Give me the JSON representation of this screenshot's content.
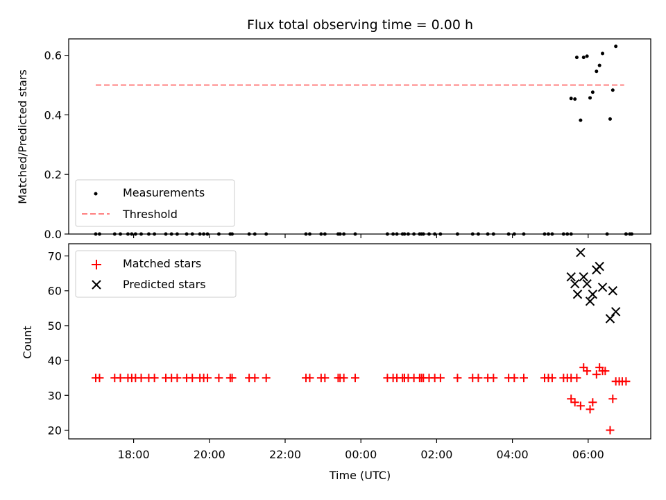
{
  "title": "Flux total observing time = 0.00 h",
  "x_axis": {
    "label": "Time (UTC)",
    "ticks": [
      {
        "hours": 1.0,
        "label": "18:00"
      },
      {
        "hours": 3.0,
        "label": "20:00"
      },
      {
        "hours": 5.0,
        "label": "22:00"
      },
      {
        "hours": 7.0,
        "label": "00:00"
      },
      {
        "hours": 9.0,
        "label": "02:00"
      },
      {
        "hours": 11.0,
        "label": "04:00"
      },
      {
        "hours": 13.0,
        "label": "06:00"
      }
    ]
  },
  "colors": {
    "measurements": "#000000",
    "threshold": "#ff7f7f",
    "matched": "#ff0000",
    "predicted": "#000000"
  },
  "chart_data": [
    {
      "type": "scatter",
      "ylabel": "Matched/Predicted stars",
      "xlabel": "",
      "ylim": [
        0.0,
        0.655
      ],
      "yticks": [
        "0.0",
        "0.2",
        "0.4",
        "0.6"
      ],
      "yticks_values": [
        0.0,
        0.2,
        0.4,
        0.6
      ],
      "legend_position": "lower-left",
      "series": [
        {
          "name": "Measurements",
          "kind": "scatter",
          "points": [
            [
              0.0,
              0
            ],
            [
              0.1,
              0
            ],
            [
              0.5,
              0
            ],
            [
              0.65,
              0
            ],
            [
              0.85,
              0
            ],
            [
              0.95,
              0
            ],
            [
              1.05,
              0
            ],
            [
              1.2,
              0
            ],
            [
              1.4,
              0
            ],
            [
              1.55,
              0
            ],
            [
              1.85,
              0
            ],
            [
              2.0,
              0
            ],
            [
              2.15,
              0
            ],
            [
              2.4,
              0
            ],
            [
              2.55,
              0
            ],
            [
              2.75,
              0
            ],
            [
              2.85,
              0
            ],
            [
              2.95,
              0
            ],
            [
              3.25,
              0
            ],
            [
              3.55,
              0
            ],
            [
              3.6,
              0
            ],
            [
              4.05,
              0
            ],
            [
              4.2,
              0
            ],
            [
              4.5,
              0
            ],
            [
              5.55,
              0
            ],
            [
              5.65,
              0
            ],
            [
              5.95,
              0
            ],
            [
              6.05,
              0
            ],
            [
              6.4,
              0
            ],
            [
              6.45,
              0
            ],
            [
              6.55,
              0
            ],
            [
              6.85,
              0
            ],
            [
              7.7,
              0
            ],
            [
              7.85,
              0
            ],
            [
              7.95,
              0
            ],
            [
              8.1,
              0
            ],
            [
              8.15,
              0
            ],
            [
              8.25,
              0
            ],
            [
              8.4,
              0
            ],
            [
              8.55,
              0
            ],
            [
              8.6,
              0
            ],
            [
              8.65,
              0
            ],
            [
              8.8,
              0
            ],
            [
              8.95,
              0
            ],
            [
              9.1,
              0
            ],
            [
              9.55,
              0
            ],
            [
              9.95,
              0
            ],
            [
              10.1,
              0
            ],
            [
              10.35,
              0
            ],
            [
              10.5,
              0
            ],
            [
              10.9,
              0
            ],
            [
              11.05,
              0
            ],
            [
              11.3,
              0
            ],
            [
              11.85,
              0
            ],
            [
              11.95,
              0
            ],
            [
              12.05,
              0
            ],
            [
              12.35,
              0
            ],
            [
              12.45,
              0
            ],
            [
              12.55,
              0
            ],
            [
              13.5,
              0
            ],
            [
              14.0,
              0
            ],
            [
              14.0,
              0
            ],
            [
              14.1,
              0
            ],
            [
              14.15,
              0
            ],
            [
              12.55,
              0.455
            ],
            [
              12.65,
              0.453
            ],
            [
              12.7,
              0.593
            ],
            [
              12.8,
              0.382
            ],
            [
              12.88,
              0.593
            ],
            [
              12.97,
              0.597
            ],
            [
              13.05,
              0.457
            ],
            [
              13.12,
              0.476
            ],
            [
              13.22,
              0.546
            ],
            [
              13.3,
              0.566
            ],
            [
              13.38,
              0.606
            ],
            [
              13.58,
              0.386
            ],
            [
              13.65,
              0.483
            ],
            [
              13.73,
              0.63
            ]
          ]
        },
        {
          "name": "Threshold",
          "kind": "hline",
          "y": 0.5,
          "x_range": [
            0.0,
            13.95
          ]
        }
      ]
    },
    {
      "type": "scatter",
      "ylabel": "Count",
      "xlabel": "Time (UTC)",
      "ylim": [
        17.5,
        73.5
      ],
      "yticks": [
        "20",
        "30",
        "40",
        "50",
        "60",
        "70"
      ],
      "yticks_values": [
        20,
        30,
        40,
        50,
        60,
        70
      ],
      "legend_position": "upper-left",
      "series": [
        {
          "name": "Matched stars",
          "marker": "plus",
          "points": [
            [
              0.0,
              35
            ],
            [
              0.1,
              35
            ],
            [
              0.5,
              35
            ],
            [
              0.65,
              35
            ],
            [
              0.85,
              35
            ],
            [
              0.95,
              35
            ],
            [
              1.05,
              35
            ],
            [
              1.2,
              35
            ],
            [
              1.4,
              35
            ],
            [
              1.55,
              35
            ],
            [
              1.85,
              35
            ],
            [
              2.0,
              35
            ],
            [
              2.15,
              35
            ],
            [
              2.4,
              35
            ],
            [
              2.55,
              35
            ],
            [
              2.75,
              35
            ],
            [
              2.85,
              35
            ],
            [
              2.95,
              35
            ],
            [
              3.25,
              35
            ],
            [
              3.55,
              35
            ],
            [
              3.6,
              35
            ],
            [
              4.05,
              35
            ],
            [
              4.2,
              35
            ],
            [
              4.5,
              35
            ],
            [
              5.55,
              35
            ],
            [
              5.65,
              35
            ],
            [
              5.95,
              35
            ],
            [
              6.05,
              35
            ],
            [
              6.4,
              35
            ],
            [
              6.45,
              35
            ],
            [
              6.55,
              35
            ],
            [
              6.85,
              35
            ],
            [
              7.7,
              35
            ],
            [
              7.85,
              35
            ],
            [
              7.95,
              35
            ],
            [
              8.1,
              35
            ],
            [
              8.15,
              35
            ],
            [
              8.25,
              35
            ],
            [
              8.4,
              35
            ],
            [
              8.55,
              35
            ],
            [
              8.6,
              35
            ],
            [
              8.65,
              35
            ],
            [
              8.8,
              35
            ],
            [
              8.95,
              35
            ],
            [
              9.1,
              35
            ],
            [
              9.55,
              35
            ],
            [
              9.95,
              35
            ],
            [
              10.1,
              35
            ],
            [
              10.35,
              35
            ],
            [
              10.5,
              35
            ],
            [
              10.9,
              35
            ],
            [
              11.05,
              35
            ],
            [
              11.3,
              35
            ],
            [
              11.85,
              35
            ],
            [
              11.95,
              35
            ],
            [
              12.05,
              35
            ],
            [
              12.35,
              35
            ],
            [
              12.45,
              35
            ],
            [
              12.55,
              35
            ],
            [
              12.55,
              29
            ],
            [
              12.65,
              28
            ],
            [
              12.7,
              35
            ],
            [
              12.8,
              27
            ],
            [
              12.88,
              38
            ],
            [
              12.97,
              37
            ],
            [
              13.05,
              26
            ],
            [
              13.12,
              28
            ],
            [
              13.22,
              36
            ],
            [
              13.3,
              38
            ],
            [
              13.38,
              37
            ],
            [
              13.45,
              37
            ],
            [
              13.58,
              20
            ],
            [
              13.65,
              29
            ],
            [
              13.73,
              34
            ],
            [
              13.82,
              34
            ],
            [
              13.9,
              34
            ],
            [
              14.0,
              34
            ]
          ]
        },
        {
          "name": "Predicted stars",
          "marker": "x",
          "points": [
            [
              12.55,
              64
            ],
            [
              12.65,
              62
            ],
            [
              12.72,
              59
            ],
            [
              12.8,
              71
            ],
            [
              12.88,
              64
            ],
            [
              12.97,
              62
            ],
            [
              13.05,
              57
            ],
            [
              13.12,
              59
            ],
            [
              13.22,
              66
            ],
            [
              13.3,
              67
            ],
            [
              13.38,
              61
            ],
            [
              13.58,
              52
            ],
            [
              13.65,
              60
            ],
            [
              13.73,
              54
            ]
          ]
        }
      ]
    }
  ]
}
